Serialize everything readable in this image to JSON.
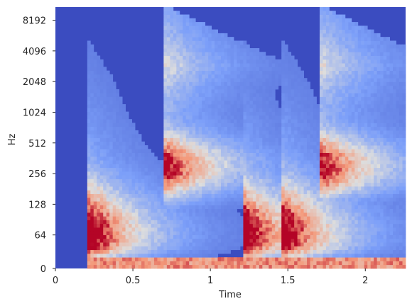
{
  "chart_data": {
    "type": "heatmap",
    "title": "",
    "xlabel": "Time",
    "ylabel": "Hz",
    "xlim": [
      0,
      2.26
    ],
    "y_scale": "symlog",
    "ylim": [
      0,
      11025
    ],
    "x_ticks": [
      0,
      0.5,
      1,
      1.5,
      2
    ],
    "x_tick_labels": [
      "0",
      "0.5",
      "1",
      "1.5",
      "2"
    ],
    "y_ticks": [
      0,
      64,
      128,
      256,
      512,
      1024,
      2048,
      4096,
      8192
    ],
    "y_tick_labels": [
      "0",
      "64",
      "128",
      "256",
      "512",
      "1024",
      "2048",
      "4096",
      "8192"
    ],
    "colormap": "coolwarm",
    "background_color": "#3b4cc0",
    "grid": false,
    "onsets_sec": [
      0.22,
      0.72,
      1.22,
      1.47,
      1.72
    ],
    "onset_kinds": [
      "low",
      "high",
      "low",
      "low",
      "high"
    ]
  }
}
